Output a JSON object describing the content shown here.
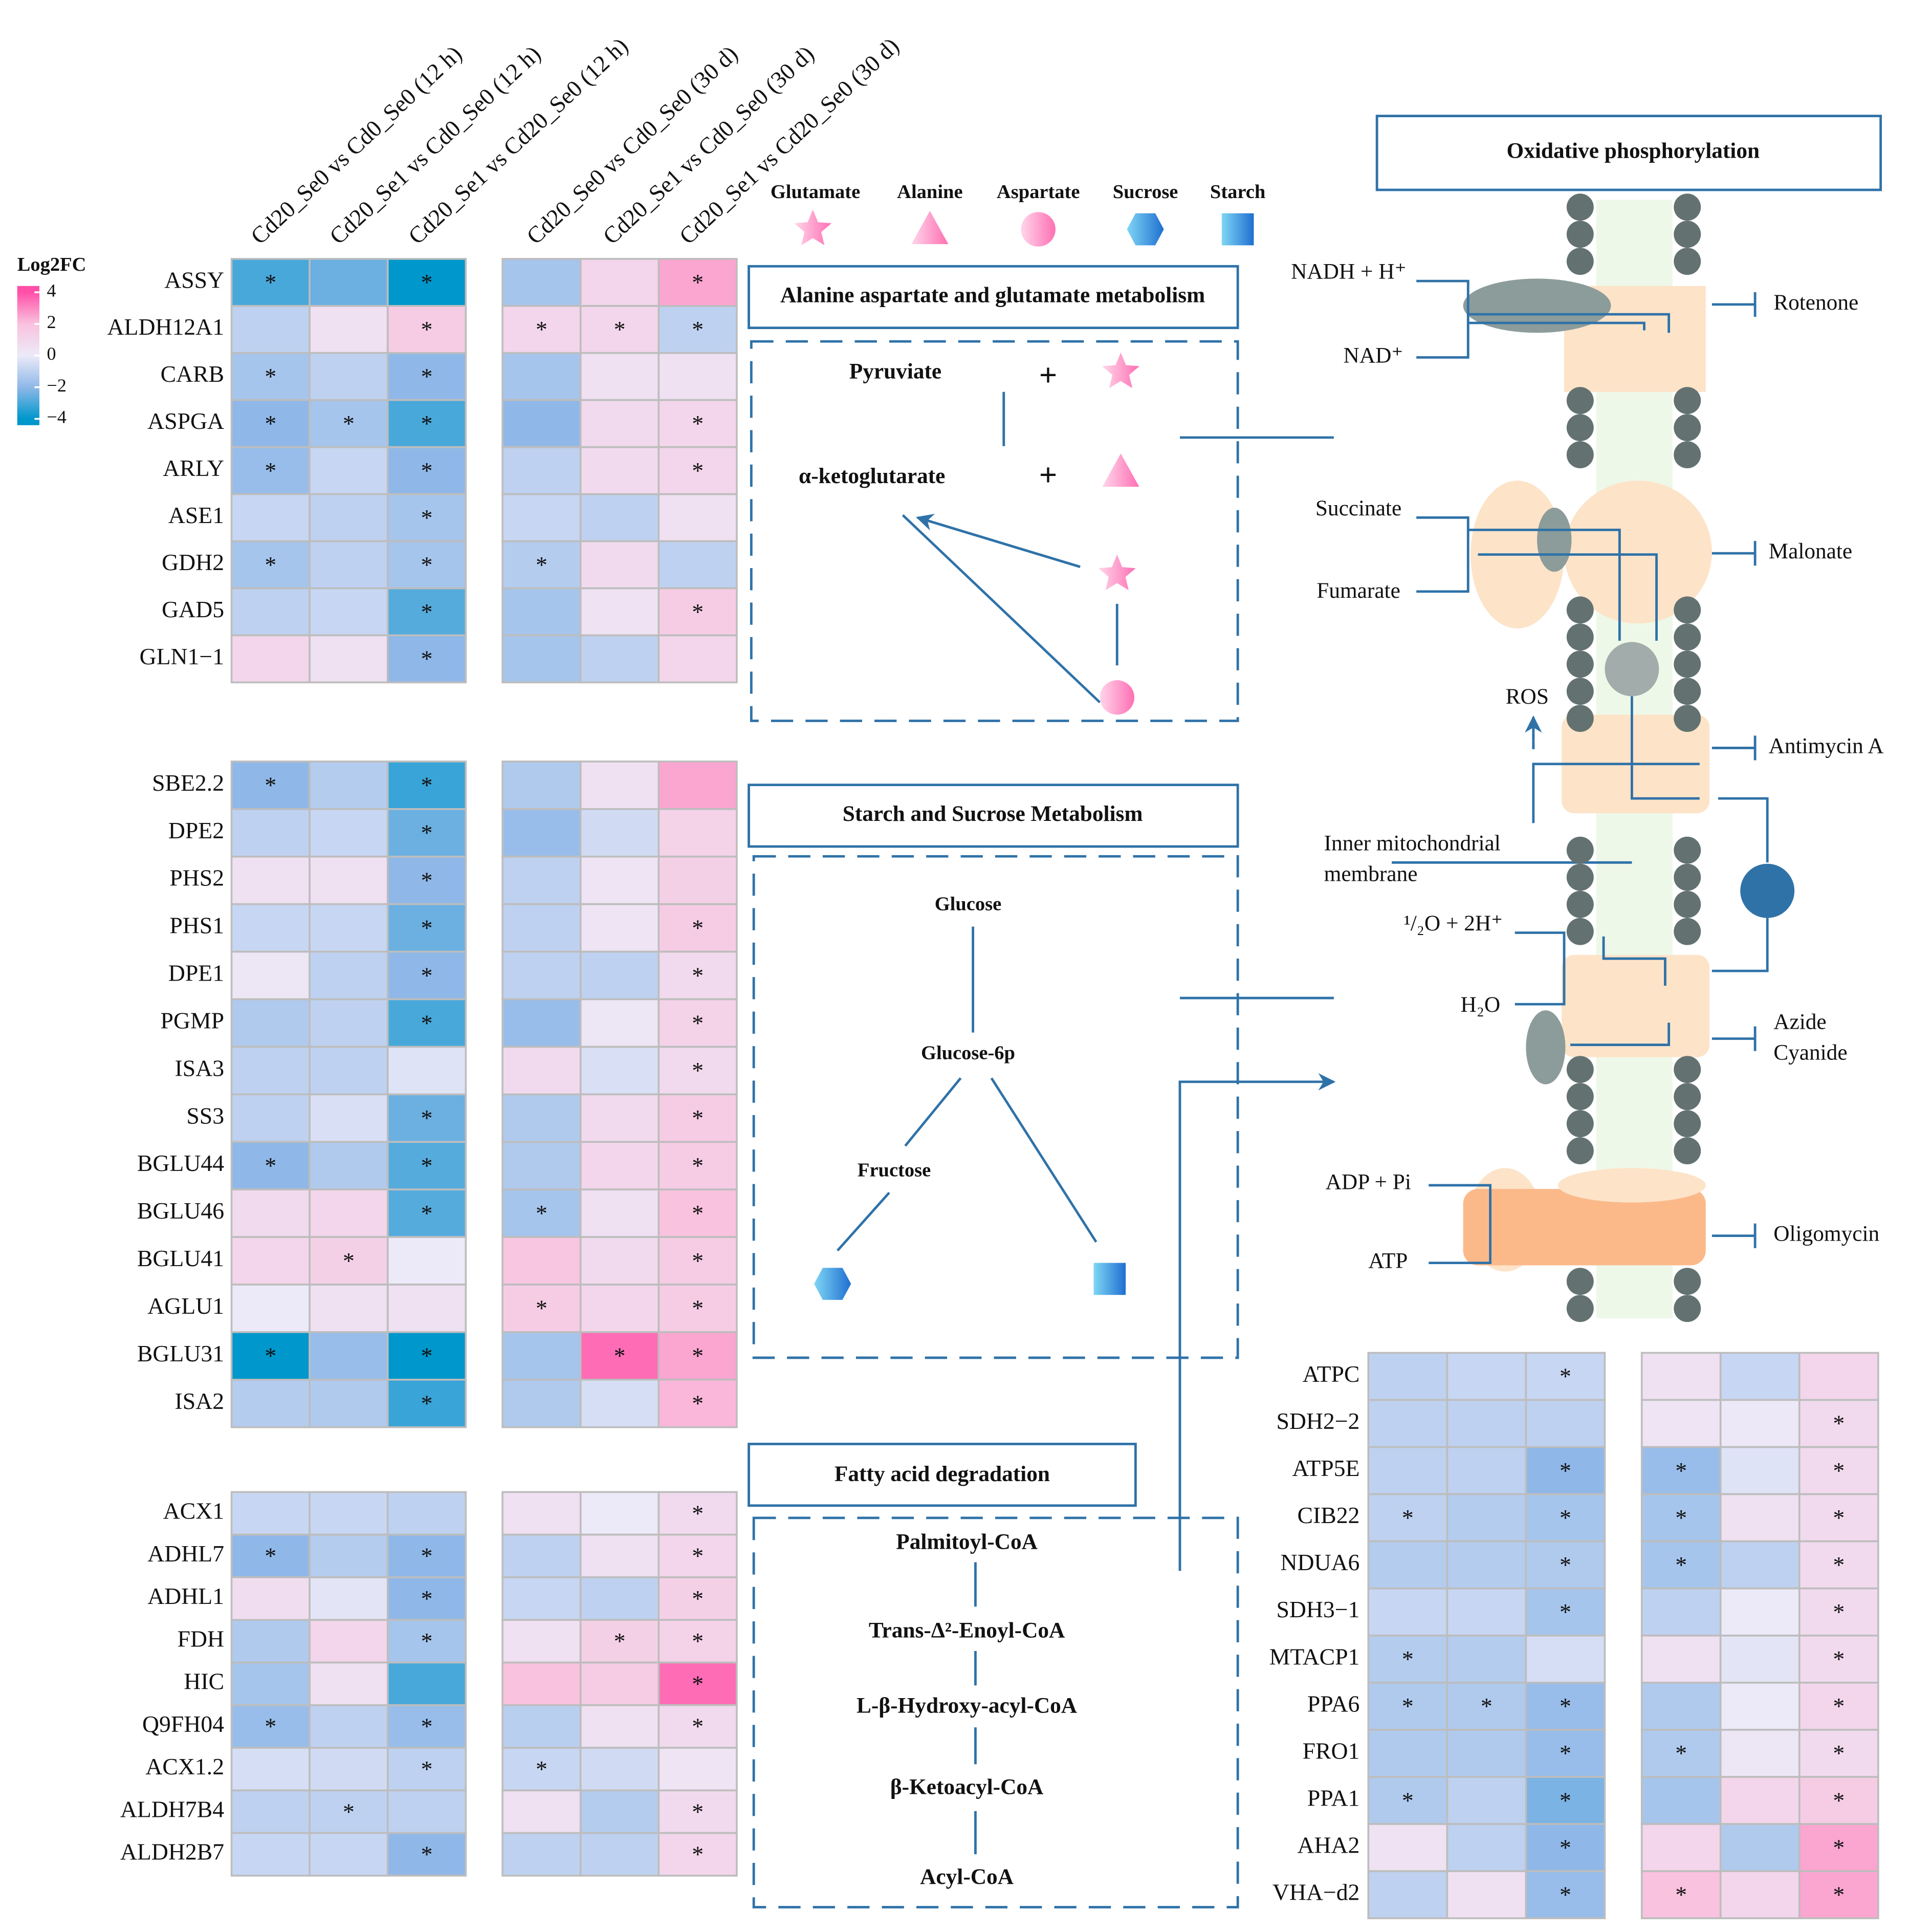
{
  "chart_data": {
    "type": "heatmap",
    "columns": [
      "Cd20_Se0 vs Cd0_Se0 (12 h)",
      "Cd20_Se1 vs Cd0_Se0 (12 h)",
      "Cd20_Se1 vs Cd20_Se0 (12 h)",
      "Cd20_Se0 vs Cd0_Se0 (30 d)",
      "Cd20_Se1 vs Cd0_Se0 (30 d)",
      "Cd20_Se1 vs Cd20_Se0 (30 d)"
    ],
    "colorbar": {
      "title": "Log2FC",
      "lim": [
        -4.4,
        4.4
      ],
      "ticks": [
        4,
        2,
        0,
        {
          "value": -2,
          "label": "−2"
        },
        {
          "value": -4,
          "label": "−4"
        }
      ],
      "colors": [
        "#ff4fa8",
        "#f9c2de",
        "#eceaf8",
        "#8fb8e8",
        "#0097cc"
      ]
    },
    "groups": [
      {
        "rows": [
          "ASSY",
          "ALDH12A1",
          "CARB",
          "ASPGA",
          "ARLY",
          "ASE1",
          "GDH2",
          "GAD5",
          "GLN1−1"
        ],
        "values": [
          [
            -3,
            -2.5,
            -4,
            -1.5,
            1,
            2.5
          ],
          [
            -1,
            0.5,
            1.5,
            1,
            1,
            -1
          ],
          [
            -1.5,
            -1,
            -2,
            -1.5,
            0.5,
            0.5
          ],
          [
            -2,
            -1.5,
            -3,
            -2,
            0.8,
            1
          ],
          [
            -1.8,
            -0.8,
            -2,
            -1,
            0.8,
            1
          ],
          [
            -0.8,
            -1,
            -1.5,
            -0.8,
            -1,
            0.5
          ],
          [
            -1.5,
            -1,
            -1.5,
            -1.2,
            0.8,
            -1
          ],
          [
            -1,
            -0.8,
            -2.8,
            -1.5,
            0.4,
            1.5
          ],
          [
            1,
            0.5,
            -2,
            -1.5,
            -1,
            1
          ]
        ],
        "stars": [
          [
            "*",
            null,
            "*",
            null,
            null,
            "*"
          ],
          [
            null,
            null,
            "*",
            "*",
            "*",
            "*"
          ],
          [
            "*",
            null,
            "*",
            null,
            null,
            null
          ],
          [
            "*",
            "*",
            "*",
            null,
            null,
            "*"
          ],
          [
            "*",
            null,
            "*",
            null,
            null,
            "*"
          ],
          [
            null,
            null,
            "*",
            null,
            null,
            null
          ],
          [
            "*",
            null,
            "*",
            "*",
            null,
            null
          ],
          [
            null,
            null,
            "*",
            null,
            null,
            "*"
          ],
          [
            null,
            null,
            "*",
            null,
            null,
            null
          ]
        ]
      },
      {
        "rows": [
          "SBE2.2",
          "DPE2",
          "PHS2",
          "PHS1",
          "DPE1",
          "PGMP",
          "ISA3",
          "SS3",
          "BGLU44",
          "BGLU46",
          "BGLU41",
          "AGLU1",
          "BGLU31",
          "ISA2"
        ],
        "values": [
          [
            -2,
            -1.2,
            -3.2,
            -1.3,
            0.5,
            2.5
          ],
          [
            -1,
            -0.8,
            -2.5,
            -1.8,
            -0.6,
            1.2
          ],
          [
            0.5,
            0.5,
            -2,
            -1,
            0.3,
            1.3
          ],
          [
            -0.8,
            -0.8,
            -2.5,
            -1,
            0.3,
            1.5
          ],
          [
            0.2,
            -1,
            -2,
            -1,
            -1,
            0.8
          ],
          [
            -1.3,
            -1,
            -3,
            -1.8,
            0.2,
            1.2
          ],
          [
            -1,
            -1,
            -0.3,
            0.8,
            -0.4,
            0.8
          ],
          [
            -1,
            -0.4,
            -2.5,
            -1.3,
            0.8,
            1.5
          ],
          [
            -2,
            -1.3,
            -2.8,
            -1.3,
            1,
            1.5
          ],
          [
            0.8,
            1,
            -2.8,
            -1.5,
            0.5,
            2
          ],
          [
            1,
            1.3,
            0,
            1.8,
            0.8,
            1.5
          ],
          [
            0,
            0.5,
            0.5,
            1.5,
            1,
            1.5
          ],
          [
            -4,
            -1.8,
            -4,
            -1.5,
            3.5,
            2.5
          ],
          [
            -1.2,
            -1.3,
            -3.2,
            -1.3,
            -0.5,
            2.2
          ]
        ],
        "stars": [
          [
            "*",
            null,
            "*",
            null,
            null,
            null
          ],
          [
            null,
            null,
            "*",
            null,
            null,
            null
          ],
          [
            null,
            null,
            "*",
            null,
            null,
            null
          ],
          [
            null,
            null,
            "*",
            null,
            null,
            "*"
          ],
          [
            null,
            null,
            "*",
            null,
            null,
            "*"
          ],
          [
            null,
            null,
            "*",
            null,
            null,
            "*"
          ],
          [
            null,
            null,
            null,
            null,
            null,
            "*"
          ],
          [
            null,
            null,
            "*",
            null,
            null,
            "*"
          ],
          [
            "*",
            null,
            "*",
            null,
            null,
            "*"
          ],
          [
            null,
            null,
            "*",
            "*",
            null,
            "*"
          ],
          [
            null,
            "*",
            null,
            null,
            null,
            "*"
          ],
          [
            null,
            null,
            null,
            "*",
            null,
            "*"
          ],
          [
            "*",
            null,
            "*",
            null,
            "*",
            "*"
          ],
          [
            null,
            null,
            "*",
            null,
            null,
            "*"
          ]
        ]
      },
      {
        "rows": [
          "ACX1",
          "ADHL7",
          "ADHL1",
          "FDH",
          "HIC",
          "Q9FH04",
          "ACX1.2",
          "ALDH7B4",
          "ALDH2B7"
        ],
        "values": [
          [
            -0.8,
            -0.8,
            -1,
            0.5,
            0,
            0.8
          ],
          [
            -2,
            -1.2,
            -2,
            -1,
            0.5,
            1
          ],
          [
            0.6,
            -0.2,
            -2,
            -0.8,
            -1,
            1.3
          ],
          [
            -1.3,
            1,
            -1.5,
            0.5,
            1.3,
            1.2
          ],
          [
            -1.5,
            0.5,
            -3,
            2,
            1.5,
            3.5
          ],
          [
            -1.8,
            -1,
            -1.8,
            -1.1,
            0.5,
            0.8
          ],
          [
            -0.5,
            -0.6,
            -1,
            -0.8,
            -0.6,
            0.3
          ],
          [
            -1,
            -1,
            -1,
            0.5,
            -1.2,
            0.8
          ],
          [
            -0.8,
            -0.8,
            -2,
            -1,
            -1,
            1
          ]
        ],
        "stars": [
          [
            null,
            null,
            null,
            null,
            null,
            "*"
          ],
          [
            "*",
            null,
            "*",
            null,
            null,
            "*"
          ],
          [
            null,
            null,
            "*",
            null,
            null,
            "*"
          ],
          [
            null,
            null,
            "*",
            null,
            "*",
            "*"
          ],
          [
            null,
            null,
            null,
            null,
            null,
            "*"
          ],
          [
            "*",
            null,
            "*",
            null,
            null,
            "*"
          ],
          [
            null,
            null,
            "*",
            "*",
            null,
            null
          ],
          [
            null,
            "*",
            null,
            null,
            null,
            "*"
          ],
          [
            null,
            null,
            "*",
            null,
            null,
            "*"
          ]
        ]
      },
      {
        "rows": [
          "ATPC",
          "SDH2−2",
          "ATP5E",
          "CIB22",
          "NDUA6",
          "SDH3−1",
          "MTACP1",
          "PPA6",
          "FRO1",
          "PPA1",
          "AHA2",
          "VHA−d2"
        ],
        "values": [
          [
            -1,
            -0.8,
            -0.8,
            0.5,
            -0.8,
            1
          ],
          [
            -1,
            -1,
            -1,
            0.3,
            0.1,
            0.8
          ],
          [
            -1,
            -1,
            -2,
            -1.8,
            -0.3,
            0.8
          ],
          [
            -1,
            -1.2,
            -1.5,
            -1.5,
            0.5,
            0.8
          ],
          [
            -1.2,
            -1.2,
            -1.3,
            -1.5,
            -1,
            0.8
          ],
          [
            -0.8,
            -0.8,
            -1.5,
            -1,
            0,
            0.8
          ],
          [
            -1.2,
            -1.2,
            -0.5,
            0.5,
            -0.2,
            0.8
          ],
          [
            -1.3,
            -1.3,
            -1.8,
            -1.3,
            0,
            1
          ],
          [
            -1.3,
            -1.3,
            -1.8,
            -1.3,
            0.2,
            0.8
          ],
          [
            -1.3,
            -1,
            -2.3,
            -1.5,
            1,
            1.5
          ],
          [
            0.4,
            -1,
            -2,
            1,
            -1.3,
            2.5
          ],
          [
            -1,
            0.5,
            -1.8,
            2,
            1,
            2.5
          ]
        ],
        "stars": [
          [
            null,
            null,
            "*",
            null,
            null,
            null
          ],
          [
            null,
            null,
            null,
            null,
            null,
            "*"
          ],
          [
            null,
            null,
            "*",
            "*",
            null,
            "*"
          ],
          [
            "*",
            null,
            "*",
            "*",
            null,
            "*"
          ],
          [
            null,
            null,
            "*",
            "*",
            null,
            "*"
          ],
          [
            null,
            null,
            "*",
            null,
            null,
            "*"
          ],
          [
            "*",
            null,
            null,
            null,
            null,
            "*"
          ],
          [
            "*",
            "*",
            "*",
            null,
            null,
            "*"
          ],
          [
            null,
            null,
            "*",
            "*",
            null,
            "*"
          ],
          [
            "*",
            null,
            "*",
            null,
            null,
            "*"
          ],
          [
            null,
            null,
            "*",
            null,
            null,
            "*"
          ],
          [
            null,
            null,
            "*",
            "*",
            null,
            "*"
          ]
        ]
      }
    ]
  },
  "diagram": {
    "legend": [
      "Glutamate",
      "Alanine",
      "Aspartate",
      "Sucrose",
      "Starch"
    ],
    "pathways": [
      {
        "title": "Alanine aspartate and glutamate metabolism",
        "nodes": [
          "Pyruviate",
          "+",
          "α-ketoglutarate",
          "+"
        ]
      },
      {
        "title": "Starch and Sucrose Metabolism",
        "nodes": [
          "Glucose",
          "Glucose-6p",
          "Fructose"
        ]
      },
      {
        "title": "Fatty acid degradation",
        "nodes": [
          "Palmitoyl-CoA",
          "Trans-Δ²-Enoyl-CoA",
          "L-β-Hydroxy-acyl-CoA",
          "β-Ketoacyl-CoA",
          "Acyl-CoA"
        ]
      }
    ],
    "oxphos": {
      "title": "Oxidative phosphorylation",
      "labels": [
        "NADH + H⁺",
        "NAD⁺",
        "Rotenone",
        "Succinate",
        "Fumarate",
        "Malonate",
        "ROS",
        "Antimycin A",
        "Inner mitochondrial",
        "membrane",
        "¹/₂O + 2H⁺",
        "H₂O",
        "Azide",
        "Cyanide",
        "ADP + Pi",
        "ATP",
        "Oligomycin"
      ]
    }
  }
}
